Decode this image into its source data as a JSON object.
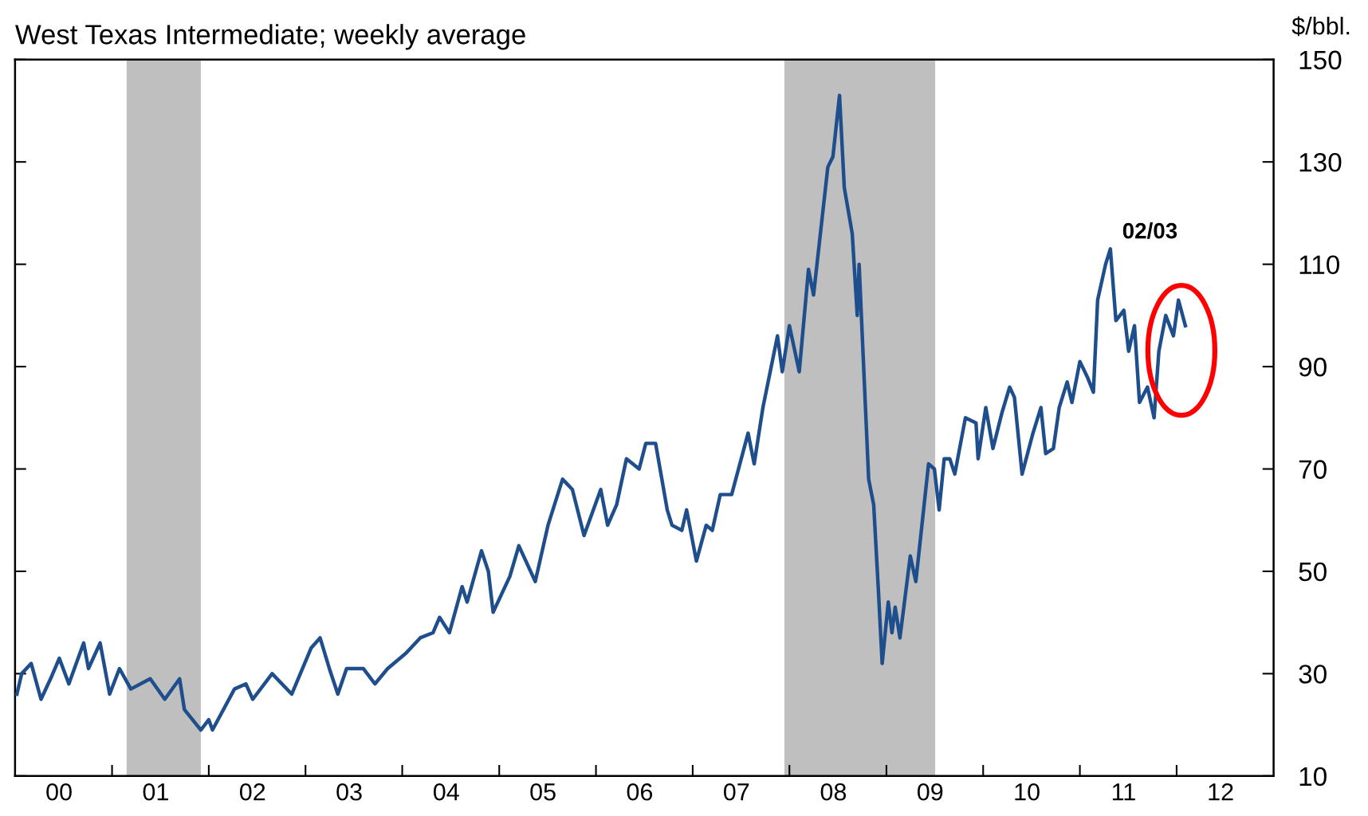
{
  "chart_data": {
    "type": "line",
    "title": "West Texas Intermediate; weekly average",
    "ylabel": "$/bbl.",
    "x": [
      "2000-01-08",
      "2000-01-26",
      "2000-03-02",
      "2000-04-08",
      "2000-05-14",
      "2000-06-16",
      "2000-07-22",
      "2000-09-16",
      "2000-10-04",
      "2000-11-17",
      "2000-12-23",
      "2001-01-29",
      "2001-03-13",
      "2001-05-25",
      "2001-07-19",
      "2001-09-13",
      "2001-10-01",
      "2001-12-02",
      "2002-01-01",
      "2002-01-15",
      "2002-04-08",
      "2002-05-21",
      "2002-06-16",
      "2002-08-28",
      "2002-11-10",
      "2003-01-22",
      "2003-02-25",
      "2003-04-01",
      "2003-05-03",
      "2003-06-05",
      "2003-08-07",
      "2003-09-20",
      "2003-11-07",
      "2004-01-15",
      "2004-03-09",
      "2004-04-26",
      "2004-05-21",
      "2004-06-27",
      "2004-08-14",
      "2004-09-02",
      "2004-10-26",
      "2004-11-21",
      "2004-12-09",
      "2005-02-10",
      "2005-03-16",
      "2005-05-17",
      "2005-07-04",
      "2005-08-28",
      "2005-10-04",
      "2005-11-17",
      "2006-01-19",
      "2006-02-14",
      "2006-03-20",
      "2006-04-26",
      "2006-06-13",
      "2006-07-08",
      "2006-08-14",
      "2006-09-27",
      "2006-10-15",
      "2006-11-21",
      "2006-12-09",
      "2007-01-15",
      "2007-02-21",
      "2007-03-16",
      "2007-04-15",
      "2007-05-28",
      "2007-07-29",
      "2007-08-21",
      "2007-09-23",
      "2007-11-17",
      "2007-12-05",
      "2008-01-01",
      "2008-02-07",
      "2008-03-13",
      "2008-04-01",
      "2008-04-29",
      "2008-05-25",
      "2008-06-13",
      "2008-07-08",
      "2008-07-26",
      "2008-08-25",
      "2008-09-13",
      "2008-09-20",
      "2008-10-01",
      "2008-10-26",
      "2008-11-14",
      "2008-12-02",
      "2008-12-16",
      "2009-01-08",
      "2009-01-22",
      "2009-02-03",
      "2009-02-21",
      "2009-04-01",
      "2009-04-22",
      "2009-06-09",
      "2009-07-01",
      "2009-07-19",
      "2009-08-07",
      "2009-08-28",
      "2009-09-16",
      "2009-10-26",
      "2009-12-05",
      "2009-12-13",
      "2010-01-11",
      "2010-02-07",
      "2010-03-13",
      "2010-04-11",
      "2010-04-29",
      "2010-05-28",
      "2010-07-08",
      "2010-08-07",
      "2010-08-25",
      "2010-09-23",
      "2010-10-15",
      "2010-11-14",
      "2010-12-02",
      "2011-01-01",
      "2011-01-29",
      "2011-02-21",
      "2011-03-09",
      "2011-04-08",
      "2011-04-26",
      "2011-05-17",
      "2011-06-16",
      "2011-07-04",
      "2011-07-26",
      "2011-08-14",
      "2011-09-13",
      "2011-10-08",
      "2011-10-26",
      "2011-11-21",
      "2011-12-20",
      "2012-01-08",
      "2012-02-03"
    ],
    "series": [
      {
        "color": "#1f4e8c",
        "values": [
          26,
          30,
          32,
          25,
          29,
          33,
          28,
          36,
          31,
          36,
          26,
          31,
          27,
          29,
          25,
          29,
          23,
          19,
          21,
          19,
          27,
          28,
          25,
          30,
          26,
          35,
          37,
          31,
          26,
          31,
          31,
          28,
          31,
          34,
          37,
          38,
          41,
          38,
          47,
          44,
          54,
          50,
          42,
          49,
          55,
          48,
          59,
          68,
          66,
          57,
          66,
          59,
          63,
          72,
          70,
          75,
          75,
          62,
          59,
          58,
          62,
          52,
          59,
          58,
          65,
          65,
          77,
          71,
          82,
          96,
          89,
          98,
          89,
          109,
          104,
          117,
          129,
          131,
          143,
          125,
          116,
          100,
          110,
          97,
          68,
          63,
          46,
          32,
          44,
          38,
          43,
          37,
          53,
          48,
          71,
          70,
          62,
          72,
          72,
          69,
          80,
          79,
          72,
          82,
          74,
          81,
          86,
          84,
          69,
          77,
          82,
          73,
          74,
          82,
          87,
          83,
          91,
          88,
          85,
          103,
          110,
          113,
          99,
          101,
          93,
          98,
          83,
          86,
          80,
          93,
          100,
          96,
          103,
          98
        ]
      }
    ],
    "xlim": [
      "2000-01-01",
      "2013-01-01"
    ],
    "ylim": [
      10,
      150
    ],
    "xticks": [
      {
        "value": "2000-06-15",
        "label": "00"
      },
      {
        "value": "2001-01-01",
        "label": null
      },
      {
        "value": "2001-06-15",
        "label": "01"
      },
      {
        "value": "2002-01-01",
        "label": null
      },
      {
        "value": "2002-06-15",
        "label": "02"
      },
      {
        "value": "2003-01-01",
        "label": null
      },
      {
        "value": "2003-06-15",
        "label": "03"
      },
      {
        "value": "2004-01-01",
        "label": null
      },
      {
        "value": "2004-06-15",
        "label": "04"
      },
      {
        "value": "2005-01-01",
        "label": null
      },
      {
        "value": "2005-06-15",
        "label": "05"
      },
      {
        "value": "2006-01-01",
        "label": null
      },
      {
        "value": "2006-06-15",
        "label": "06"
      },
      {
        "value": "2007-01-01",
        "label": null
      },
      {
        "value": "2007-06-15",
        "label": "07"
      },
      {
        "value": "2008-01-01",
        "label": null
      },
      {
        "value": "2008-06-15",
        "label": "08"
      },
      {
        "value": "2009-01-01",
        "label": null
      },
      {
        "value": "2009-06-15",
        "label": "09"
      },
      {
        "value": "2010-01-01",
        "label": null
      },
      {
        "value": "2010-06-15",
        "label": "10"
      },
      {
        "value": "2011-01-01",
        "label": null
      },
      {
        "value": "2011-06-15",
        "label": "11"
      },
      {
        "value": "2012-01-01",
        "label": null
      },
      {
        "value": "2012-06-15",
        "label": "12"
      }
    ],
    "yticks": [
      10,
      30,
      50,
      70,
      90,
      110,
      130,
      150
    ],
    "bands": [
      {
        "axis": "x",
        "from": "2001-02-25",
        "to": "2001-12-02",
        "label": null,
        "color": "#bfbfbf"
      },
      {
        "axis": "x",
        "from": "2007-12-13",
        "to": "2009-07-04",
        "label": null,
        "color": "#bfbfbf"
      }
    ],
    "annotations": [
      "02/03"
    ]
  }
}
